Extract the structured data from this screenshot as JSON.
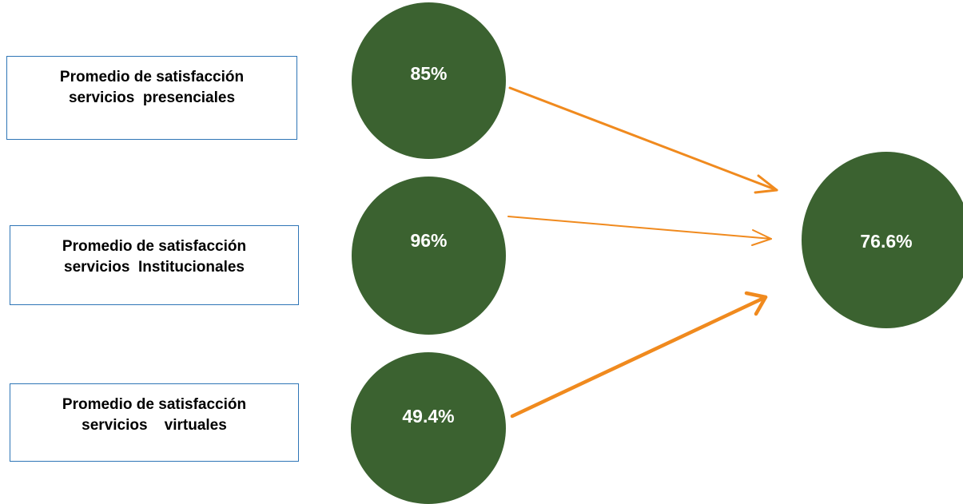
{
  "colors": {
    "circle_fill": "#3b6230",
    "arrow": "#f08a1e",
    "box_border": "#2e75b6",
    "label_text": "#000000",
    "value_text": "#ffffff"
  },
  "inputs": [
    {
      "label_line1": "Promedio de satisfacción",
      "label_line2": "servicios  presenciales",
      "value": "85%"
    },
    {
      "label_line1": "Promedio de satisfacción",
      "label_line2": "servicios  Institucionales",
      "value": "96%"
    },
    {
      "label_line1": "Promedio de satisfacción",
      "label_line2": "servicios    virtuales",
      "value": "49.4%"
    }
  ],
  "result": {
    "value": "76.6%"
  }
}
